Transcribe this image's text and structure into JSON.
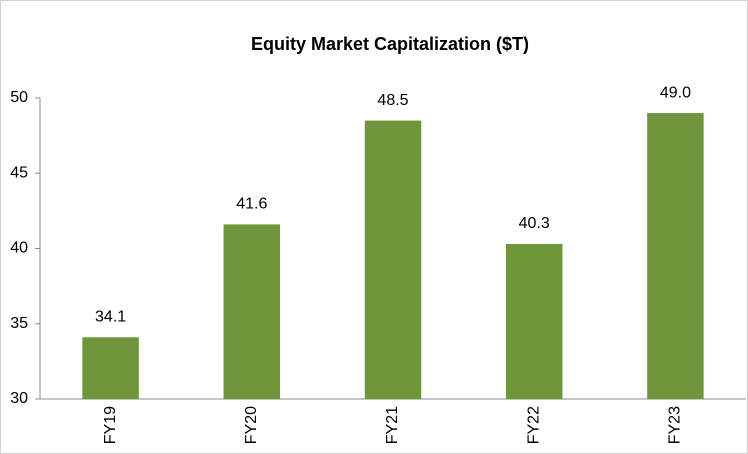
{
  "chart_data": {
    "type": "bar",
    "title": "Equity Market Capitalization ($T)",
    "categories": [
      "FY19",
      "FY20",
      "FY21",
      "FY22",
      "FY23"
    ],
    "values": [
      34.1,
      41.6,
      48.5,
      40.3,
      49.0
    ],
    "value_labels": [
      "34.1",
      "41.6",
      "48.5",
      "40.3",
      "49.0"
    ],
    "color": "#70963c",
    "ylim": [
      30,
      50
    ],
    "yticks": [
      30,
      35,
      40,
      45,
      50
    ],
    "grid": false
  }
}
